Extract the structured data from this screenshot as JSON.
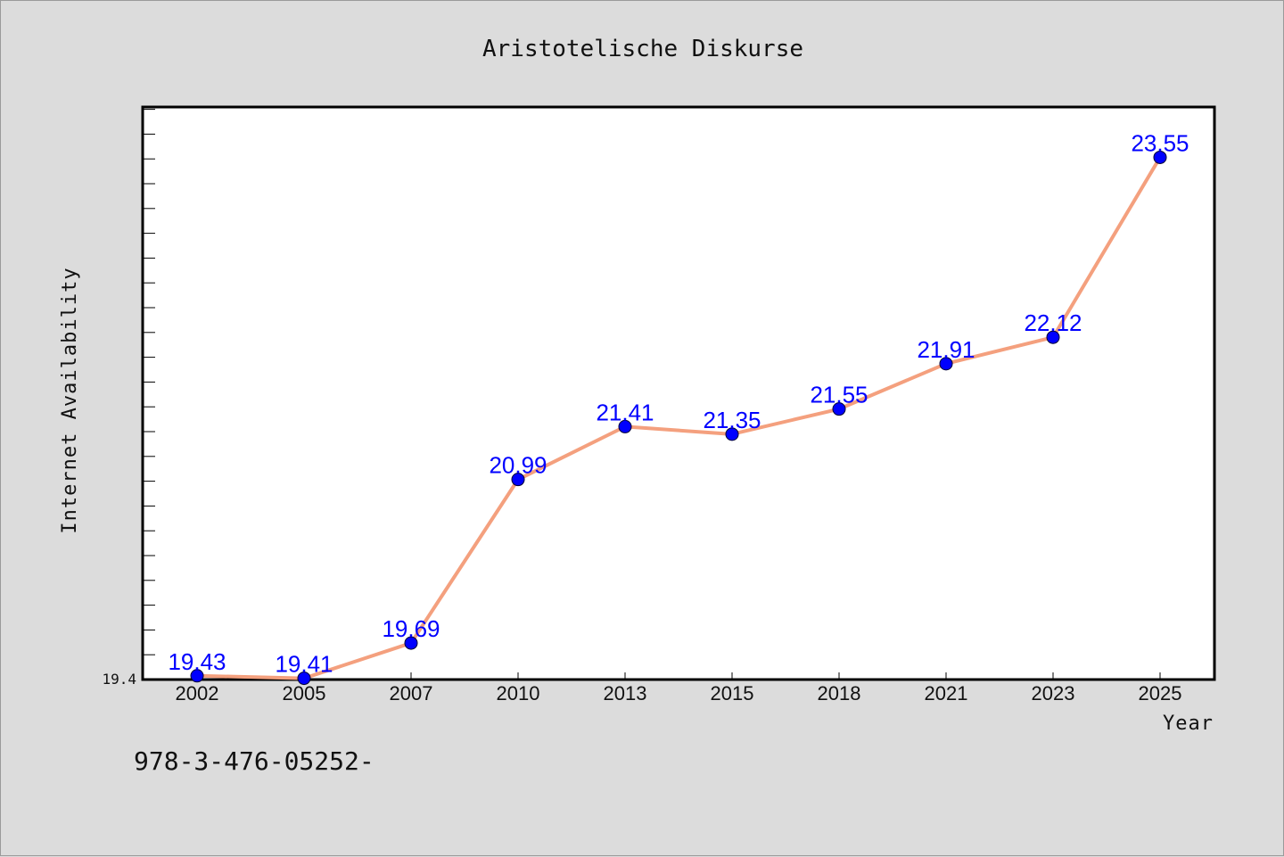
{
  "chart_data": {
    "type": "line",
    "title": "Aristotelische Diskurse",
    "xlabel": "Year",
    "ylabel": "Internet Availability",
    "categories": [
      "2002",
      "2005",
      "2007",
      "2010",
      "2013",
      "2015",
      "2018",
      "2021",
      "2023",
      "2025"
    ],
    "series": [
      {
        "values": [
          19.43,
          19.41,
          19.69,
          20.99,
          21.41,
          21.35,
          21.55,
          21.91,
          22.12,
          23.55
        ],
        "line_color": "#f4a07e",
        "marker_color": "#0000ff"
      }
    ],
    "data_labels": [
      "19.43",
      "19.41",
      "19.69",
      "20.99",
      "21.41",
      "21.35",
      "21.55",
      "21.91",
      "22.12",
      "23.55"
    ],
    "y_tick_labels": [
      "19.4"
    ],
    "ylim": [
      19.4,
      23.95
    ],
    "grid": false,
    "legend": "none"
  },
  "footer": {
    "isbn_text": "978-3-476-05252-"
  }
}
